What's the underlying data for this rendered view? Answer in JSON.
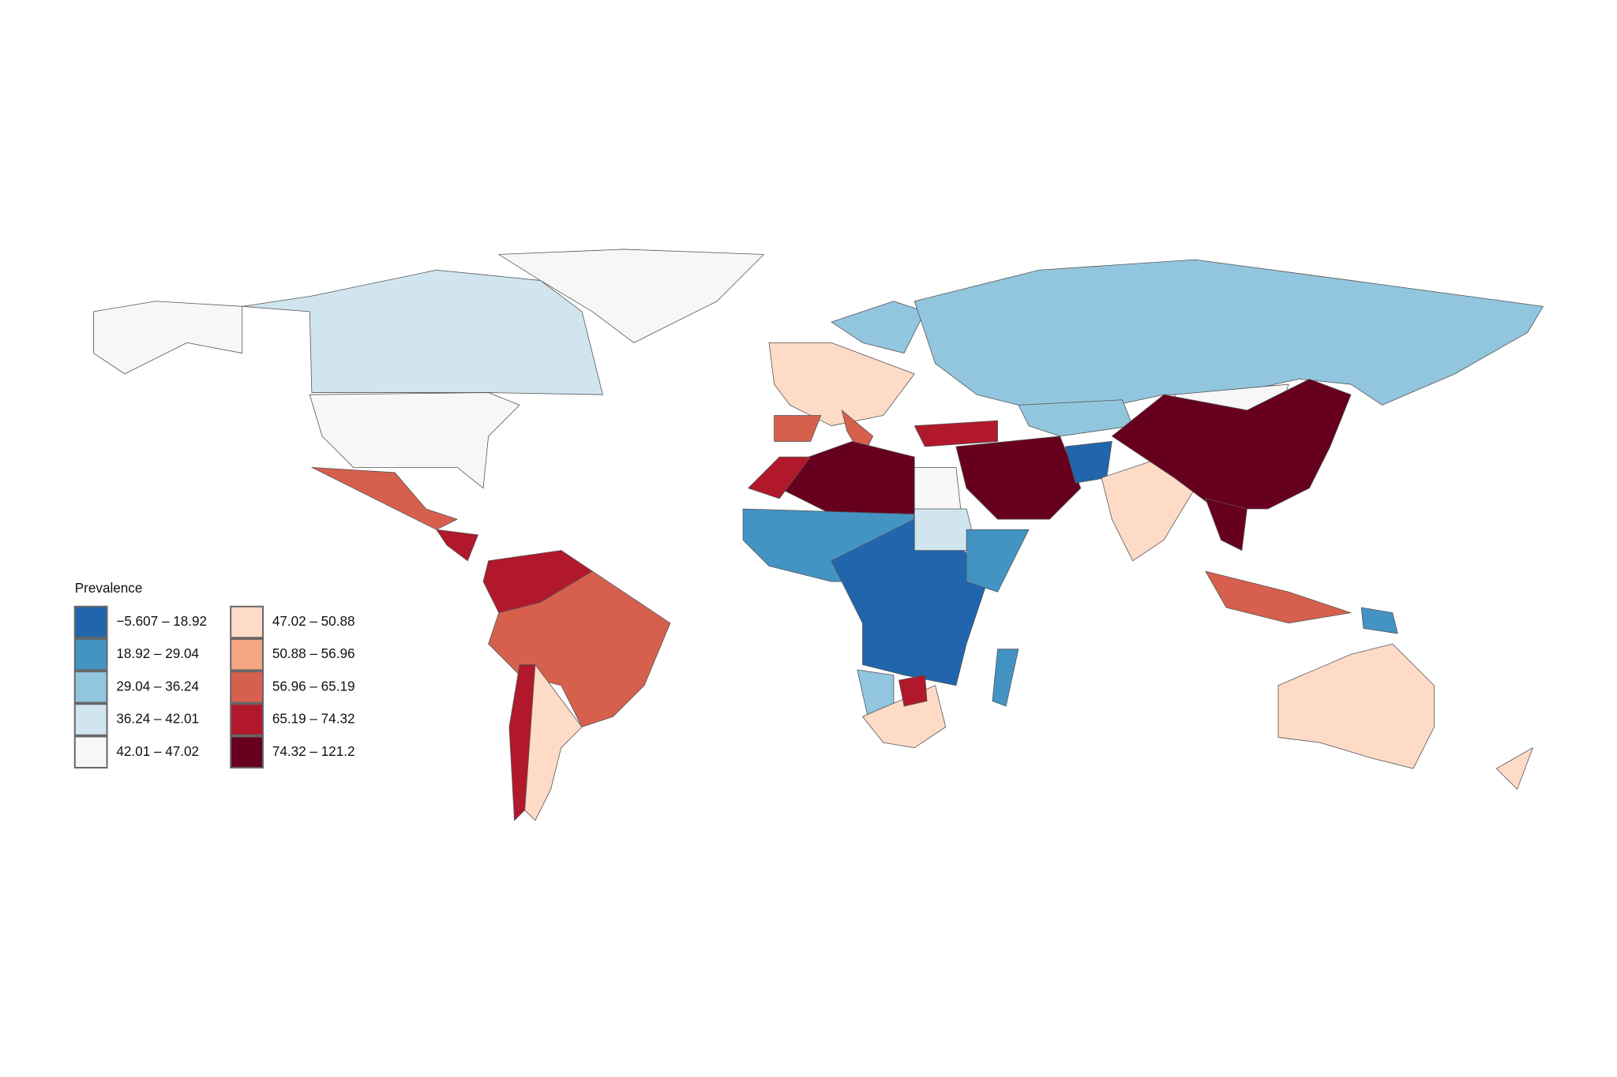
{
  "legend": {
    "title": "Prevalence",
    "items": [
      {
        "label": "−5.607 – 18.92",
        "color": "#2166ac"
      },
      {
        "label": "18.92 – 29.04",
        "color": "#4393c3"
      },
      {
        "label": "29.04 – 36.24",
        "color": "#92c5de"
      },
      {
        "label": "36.24 – 42.01",
        "color": "#d1e5f0"
      },
      {
        "label": "42.01 – 47.02",
        "color": "#f7f7f7"
      },
      {
        "label": "47.02 – 50.88",
        "color": "#fddbc7"
      },
      {
        "label": "50.88 – 56.96",
        "color": "#f4a582"
      },
      {
        "label": "56.96 – 65.19",
        "color": "#d6604d"
      },
      {
        "label": "65.19 – 74.32",
        "color": "#b2182b"
      },
      {
        "label": "74.32 – 121.2",
        "color": "#67001f"
      }
    ]
  }
}
